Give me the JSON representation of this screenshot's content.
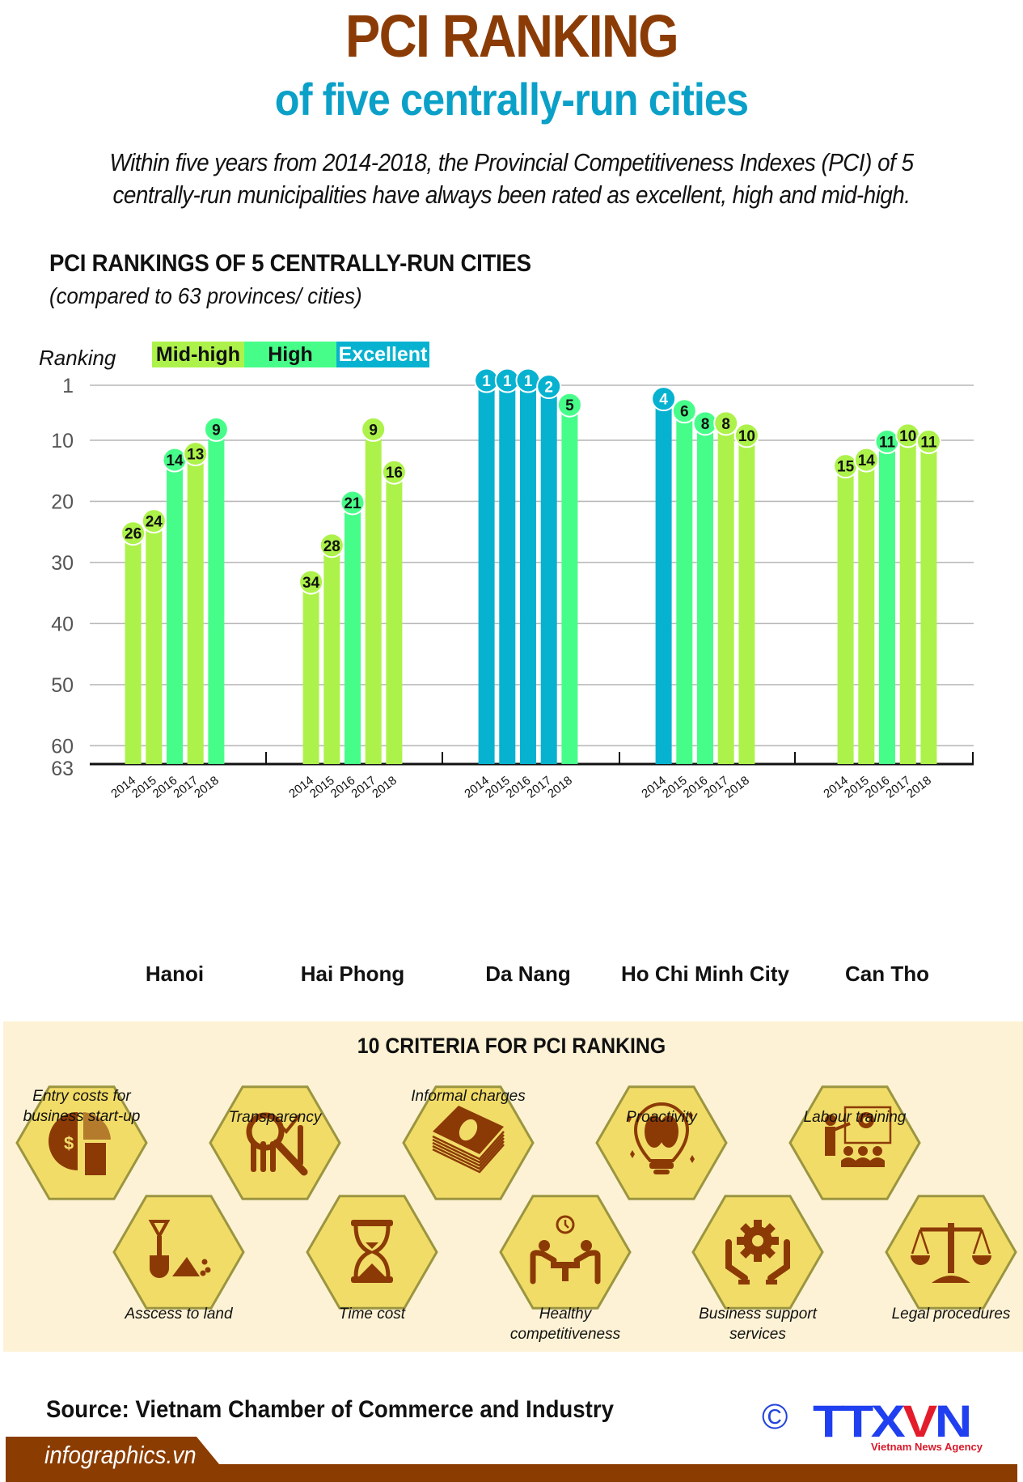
{
  "header": {
    "title": "PCI RANKING",
    "subtitle": "of five centrally-run cities",
    "description_lines": [
      "Within five years from 2014-2018, the Provincial Competitiveness Indexes (PCI) of 5",
      "centrally-run municipalities have always been rated as excellent, high and mid-high."
    ]
  },
  "colors": {
    "title": "#8b3c06",
    "subtitle": "#0aa0c8",
    "mid_high": "#adf24a",
    "high": "#47fd8a",
    "excellent": "#07b2d0",
    "criteria_panel_bg": "#fdf2d5",
    "hexagon_fill": "#f2dc68",
    "hexagon_stroke": "#9b9540",
    "icon": "#8b3a06",
    "footer_bar": "#8b3c00"
  },
  "chart_data": {
    "type": "bar",
    "title": "PCI RANKINGS OF 5 CENTRALLY-RUN CITIES",
    "subtitle": "(compared to 63 provinces/ cities)",
    "ylabel": "Ranking",
    "xlabel": "",
    "y_inverted": true,
    "ylim": [
      1,
      63
    ],
    "yticks": [
      1,
      10,
      20,
      30,
      40,
      50,
      60,
      63
    ],
    "grid": true,
    "legend": {
      "placement": "top-left",
      "entries": [
        {
          "label": "Mid-high",
          "key": "mid_high"
        },
        {
          "label": "High",
          "key": "high"
        },
        {
          "label": "Excellent",
          "key": "excellent"
        }
      ]
    },
    "years": [
      "2014",
      "2015",
      "2016",
      "2017",
      "2018"
    ],
    "categories": [
      "Hanoi",
      "Hai Phong",
      "Da Nang",
      "Ho Chi Minh City",
      "Can Tho"
    ],
    "series": [
      {
        "name": "Hanoi",
        "values": [
          26,
          24,
          14,
          13,
          9
        ],
        "ratings": [
          "mid_high",
          "mid_high",
          "high",
          "mid_high",
          "high"
        ]
      },
      {
        "name": "Hai Phong",
        "values": [
          34,
          28,
          21,
          9,
          16
        ],
        "ratings": [
          "mid_high",
          "mid_high",
          "high",
          "mid_high",
          "mid_high"
        ]
      },
      {
        "name": "Da Nang",
        "values": [
          1,
          1,
          1,
          2,
          5
        ],
        "ratings": [
          "excellent",
          "excellent",
          "excellent",
          "excellent",
          "high"
        ]
      },
      {
        "name": "Ho Chi Minh City",
        "values": [
          4,
          6,
          8,
          8,
          10
        ],
        "ratings": [
          "excellent",
          "high",
          "high",
          "mid_high",
          "mid_high"
        ]
      },
      {
        "name": "Can Tho",
        "values": [
          15,
          14,
          11,
          10,
          11
        ],
        "ratings": [
          "mid_high",
          "mid_high",
          "high",
          "mid_high",
          "mid_high"
        ]
      }
    ]
  },
  "criteria": {
    "title": "10 CRITERIA FOR PCI RANKING",
    "items": [
      {
        "label": "Entry costs for\nbusiness start-up",
        "icon": "pie-chart-money-hand-icon",
        "row": "top"
      },
      {
        "label": "Asscess to land",
        "icon": "shovel-land-icon",
        "row": "bottom"
      },
      {
        "label": "Transparency",
        "icon": "magnifier-chart-icon",
        "row": "top"
      },
      {
        "label": "Time cost",
        "icon": "hourglass-icon",
        "row": "bottom"
      },
      {
        "label": "Informal charges",
        "icon": "money-stack-icon",
        "row": "top"
      },
      {
        "label": "Healthy\ncompetitiveness",
        "icon": "people-competing-clock-icon",
        "row": "bottom"
      },
      {
        "label": "Proactivity",
        "icon": "lightbulb-brain-icon",
        "row": "top"
      },
      {
        "label": "Business support\nservices",
        "icon": "hands-gear-icon",
        "row": "bottom"
      },
      {
        "label": "Labour training",
        "icon": "presentation-training-icon",
        "row": "top"
      },
      {
        "label": "Legal procedures",
        "icon": "scales-of-justice-icon",
        "row": "bottom"
      }
    ]
  },
  "footer": {
    "source": "Source: Vietnam Chamber of Commerce and Industry",
    "site": "infographics.vn",
    "copyright_symbol": "©",
    "logo_text_a": "TTX",
    "logo_text_v": "V",
    "logo_text_b": "N",
    "agency": "Vietnam News Agency"
  }
}
